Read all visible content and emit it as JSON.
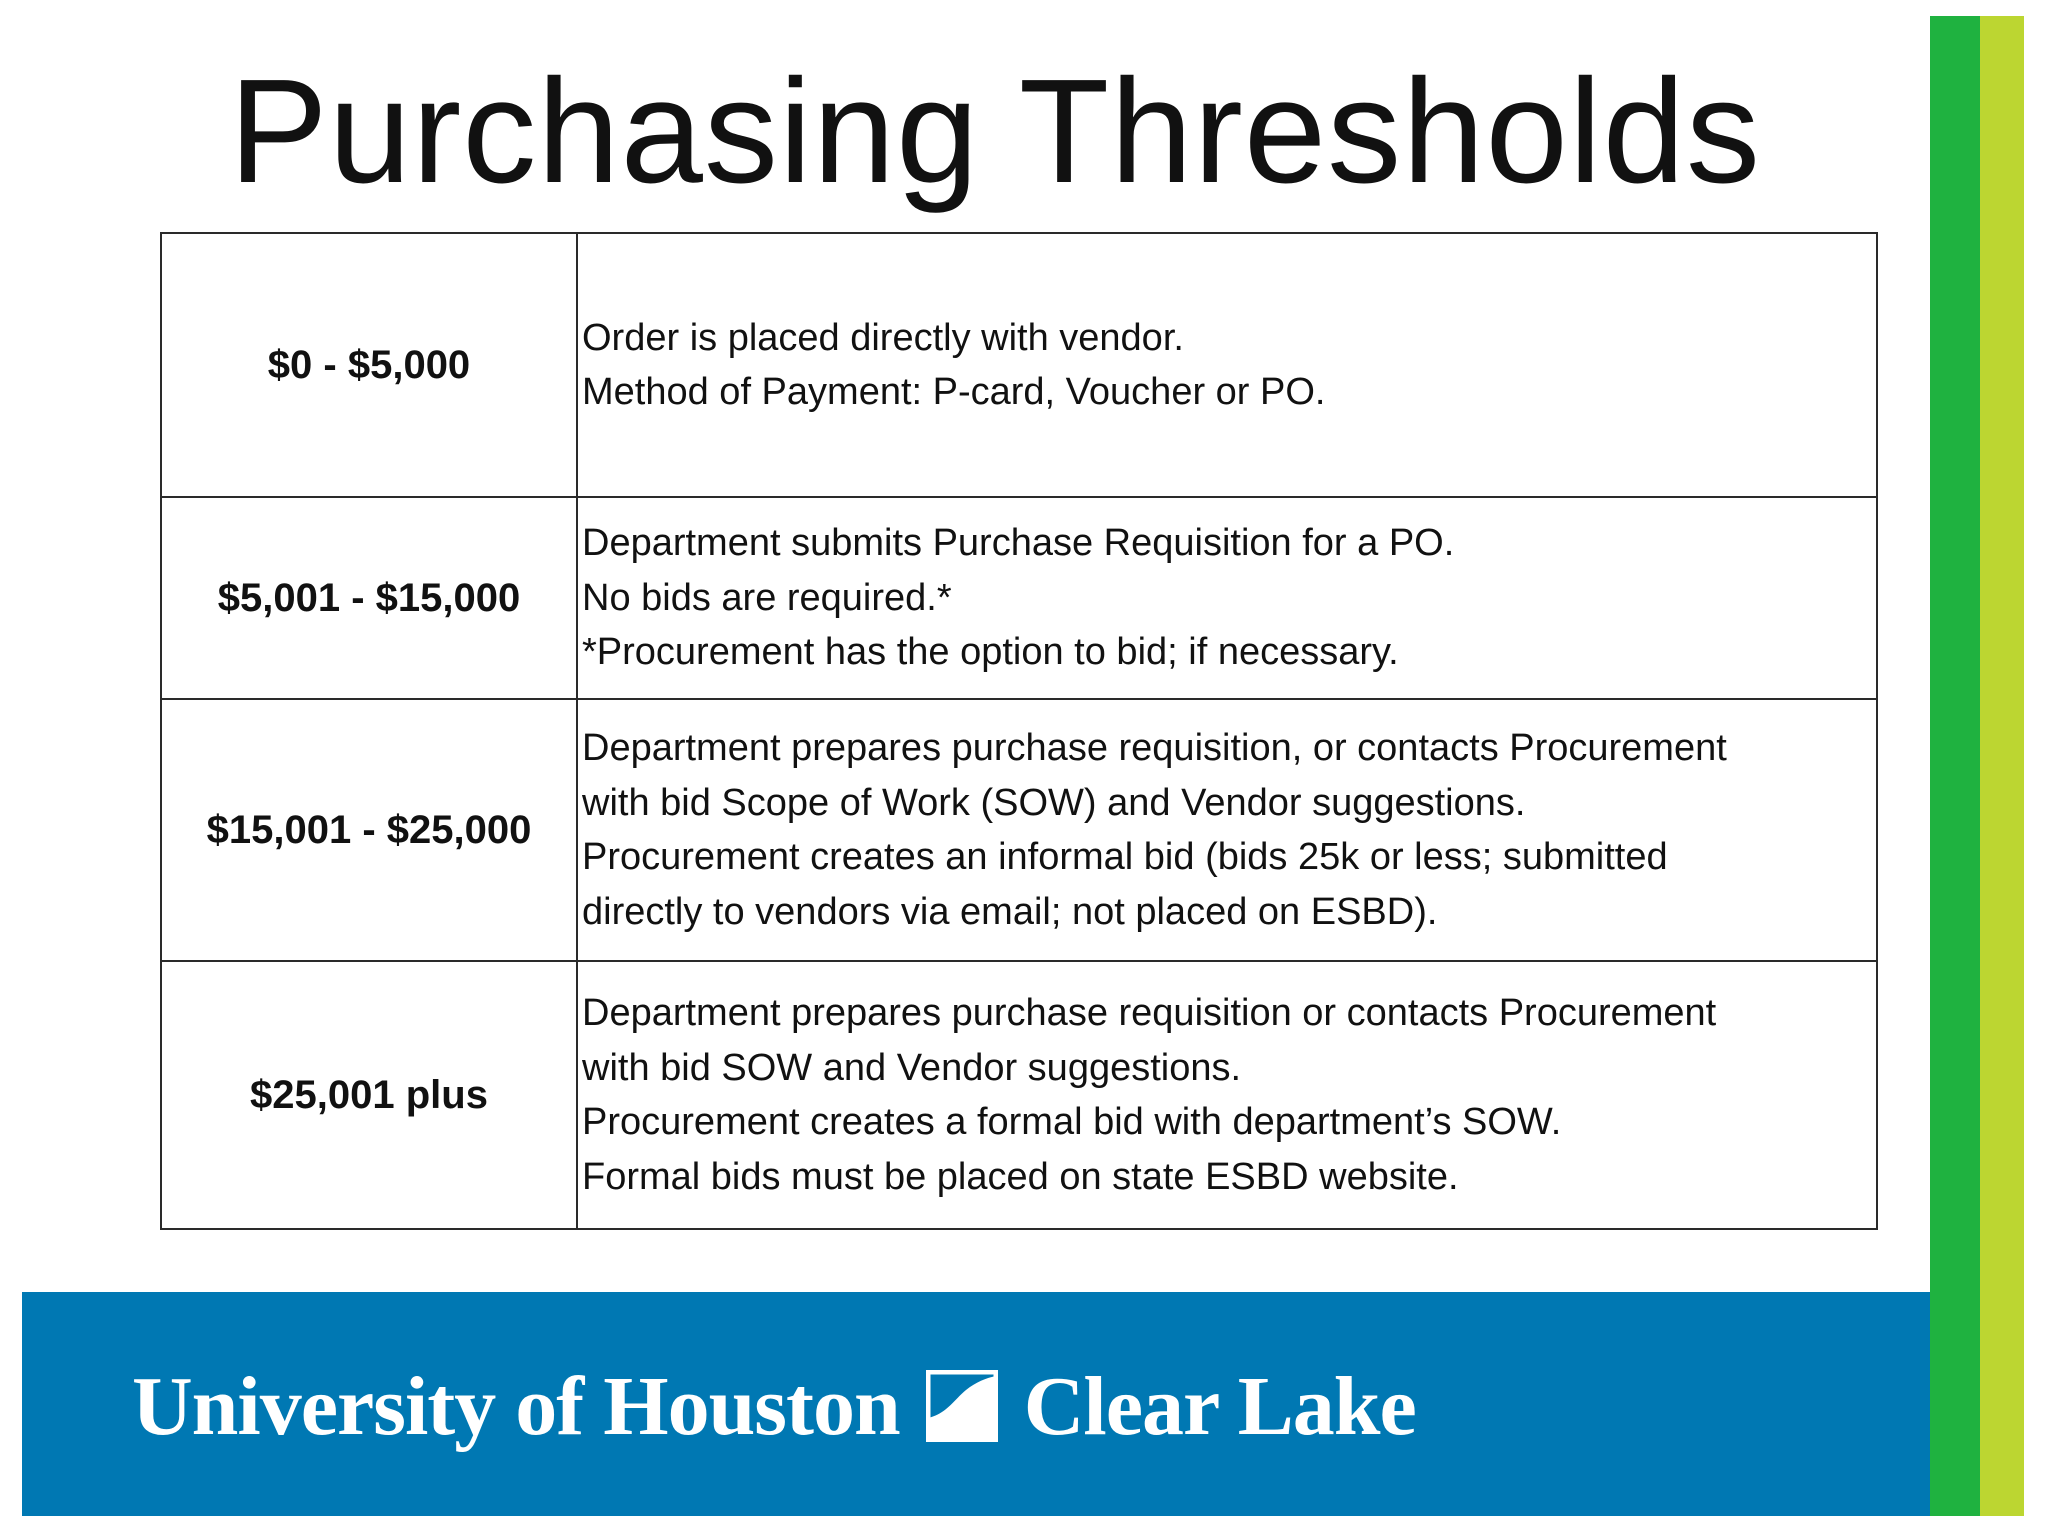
{
  "slide": {
    "title": "Purchasing Thresholds"
  },
  "thresholds": [
    {
      "range": "$0 - $5,000",
      "lines": [
        "Order is placed directly with vendor.",
        "Method of Payment: P-card, Voucher or PO."
      ]
    },
    {
      "range": "$5,001 - $15,000",
      "lines": [
        "Department submits Purchase Requisition for a PO.",
        "No bids are required.*",
        "*Procurement has the option to bid; if necessary."
      ]
    },
    {
      "range": "$15,001 - $25,000",
      "lines": [
        "Department prepares purchase requisition, or contacts Procurement",
        "with bid Scope of Work (SOW) and Vendor suggestions.",
        "Procurement creates an informal bid (bids 25k or less; submitted",
        "directly to vendors via email; not placed on ESBD)."
      ]
    },
    {
      "range": "$25,001 plus",
      "lines": [
        "Department prepares purchase requisition or contacts Procurement",
        "with bid SOW and Vendor suggestions.",
        "Procurement creates a formal bid with department’s SOW.",
        "Formal bids must be placed on state ESBD website."
      ]
    }
  ],
  "footer": {
    "logo_left": "University of Houston",
    "logo_right": "Clear Lake",
    "logo_icon": "uhcl-wave-icon"
  },
  "colors": {
    "footer_band": "#0078b3",
    "stripe_green": "#1fb240",
    "stripe_lime": "#bcd631"
  }
}
